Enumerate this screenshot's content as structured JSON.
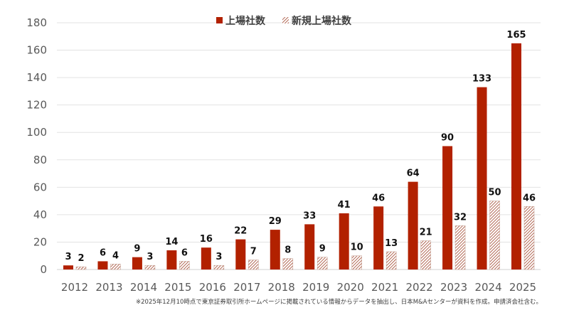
{
  "chart_data": {
    "type": "bar",
    "title": "",
    "xlabel": "",
    "ylabel": "",
    "ylim": [
      0,
      180
    ],
    "yticks": [
      0,
      20,
      40,
      60,
      80,
      100,
      120,
      140,
      160,
      180
    ],
    "grid": true,
    "legend_position": "top-center",
    "categories": [
      "2012",
      "2013",
      "2014",
      "2015",
      "2016",
      "2017",
      "2018",
      "2019",
      "2020",
      "2021",
      "2022",
      "2023",
      "2024",
      "2025"
    ],
    "series": [
      {
        "name": "上場社数",
        "style": "solid",
        "color": "#b22100",
        "values": [
          3,
          6,
          9,
          14,
          16,
          22,
          29,
          33,
          41,
          46,
          64,
          90,
          133,
          165
        ]
      },
      {
        "name": "新規上場社数",
        "style": "hatched",
        "color": "#a0432a",
        "values": [
          2,
          4,
          3,
          6,
          3,
          7,
          8,
          9,
          10,
          13,
          21,
          32,
          50,
          46
        ]
      }
    ],
    "footnote": "※2025年12月10時点で東京証券取引所ホームページに掲載されている情報からデータを抽出し、日本M&Aセンターが資料を作成。申請済会社含む。"
  }
}
